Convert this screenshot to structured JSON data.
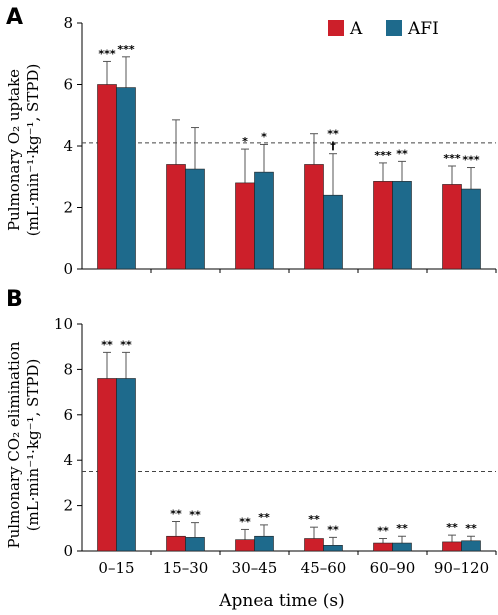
{
  "colors": {
    "A": "#cc1f2a",
    "AFI": "#1e6a8c",
    "axis": "#000000",
    "reference": "#444444"
  },
  "legend": {
    "A": "A",
    "AFI": "AFI"
  },
  "panels": {
    "a": "A",
    "b": "B"
  },
  "xlabel": "Apnea time (s)",
  "chart_data": [
    {
      "type": "bar",
      "panel": "A",
      "ylabel_line1": "Pulmonary O₂ uptake",
      "ylabel_line2": "(mL·min⁻¹·kg⁻¹, STPD)",
      "categories": [
        "0–15",
        "15–30",
        "30–45",
        "45–60",
        "60–90",
        "90–120"
      ],
      "series": [
        {
          "name": "A",
          "values": [
            6.0,
            3.4,
            2.8,
            3.4,
            2.85,
            2.75
          ],
          "errors": [
            0.75,
            1.45,
            1.1,
            1.0,
            0.6,
            0.6
          ],
          "annotations": [
            "***",
            "",
            "*",
            "",
            "***",
            "***"
          ]
        },
        {
          "name": "AFI",
          "values": [
            5.9,
            3.25,
            3.15,
            2.4,
            2.85,
            2.6
          ],
          "errors": [
            1.0,
            1.35,
            0.9,
            1.35,
            0.65,
            0.7
          ],
          "annotations": [
            "***",
            "",
            "*",
            "**|†",
            "**",
            "***"
          ]
        }
      ],
      "reference_line": 4.1,
      "ylim": [
        0,
        8
      ],
      "yticks": [
        0,
        2,
        4,
        6,
        8
      ],
      "legend_position": "top-right"
    },
    {
      "type": "bar",
      "panel": "B",
      "ylabel_line1": "Pulmonary CO₂ elimination",
      "ylabel_line2": "(mL·min⁻¹·kg⁻¹, STPD)",
      "categories": [
        "0–15",
        "15–30",
        "30–45",
        "45–60",
        "60–90",
        "90–120"
      ],
      "series": [
        {
          "name": "A",
          "values": [
            7.6,
            0.65,
            0.5,
            0.55,
            0.35,
            0.4
          ],
          "errors": [
            1.15,
            0.65,
            0.45,
            0.5,
            0.2,
            0.3
          ],
          "annotations": [
            "**",
            "**",
            "**",
            "**",
            "**",
            "**"
          ]
        },
        {
          "name": "AFI",
          "values": [
            7.6,
            0.6,
            0.65,
            0.25,
            0.35,
            0.45
          ],
          "errors": [
            1.15,
            0.65,
            0.5,
            0.35,
            0.3,
            0.2
          ],
          "annotations": [
            "**",
            "**",
            "**",
            "**",
            "**",
            "**"
          ]
        }
      ],
      "reference_line": 3.5,
      "ylim": [
        0,
        10
      ],
      "yticks": [
        0,
        2,
        4,
        6,
        8,
        10
      ]
    }
  ]
}
